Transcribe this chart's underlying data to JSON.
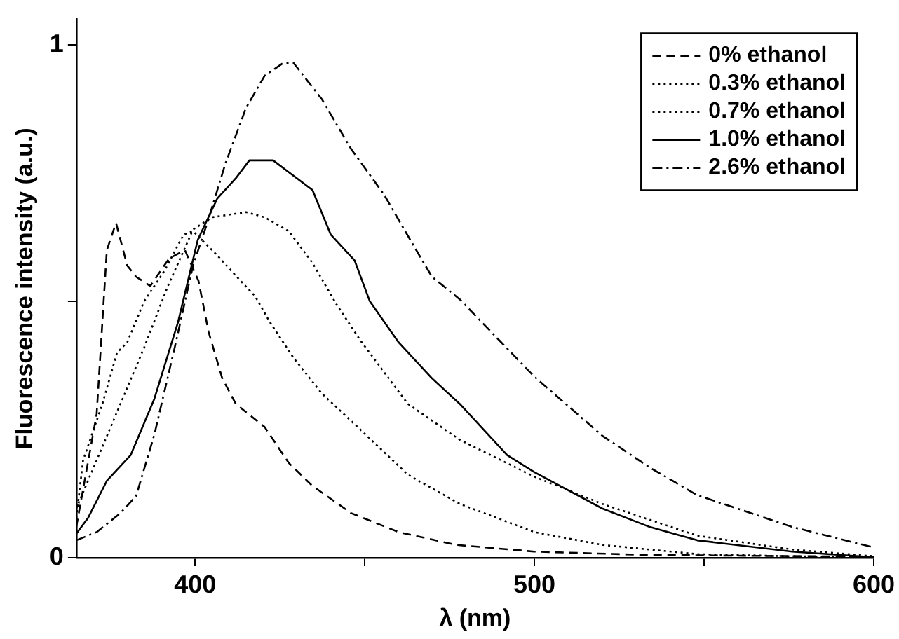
{
  "chart_data": {
    "type": "line",
    "xlabel": "λ (nm)",
    "ylabel": "Fluorescence intensity (a.u.)",
    "xlim": [
      365,
      600
    ],
    "xticks": [
      400,
      {
        "value": 450,
        "label": null
      },
      500,
      {
        "value": 550,
        "label": null
      },
      600
    ],
    "ylim": [
      0,
      1.05
    ],
    "yticks": [
      0,
      {
        "value": 0.5,
        "label": null
      },
      1
    ],
    "grid": false,
    "legend": "top right",
    "marker": "none",
    "series": [
      {
        "name": "0% ethanol",
        "color": "#000000",
        "line_style": "dashed",
        "x": [
          365,
          371,
          374,
          376.7,
          380,
          382.6,
          386.8,
          392.4,
          397,
          401,
          404,
          408,
          412,
          420.5,
          427.6,
          434.6,
          446,
          460,
          477,
          500,
          530,
          560,
          600
        ],
        "values": [
          0.06,
          0.28,
          0.6,
          0.653,
          0.57,
          0.548,
          0.53,
          0.584,
          0.6,
          0.54,
          0.44,
          0.35,
          0.3,
          0.255,
          0.185,
          0.14,
          0.087,
          0.05,
          0.025,
          0.012,
          0.006,
          0.004,
          0.002
        ]
      },
      {
        "name": "0.3% ethanol",
        "color": "#000000",
        "line_style": "dotted",
        "x": [
          365,
          367,
          372.7,
          377,
          380,
          385,
          391,
          396.6,
          399.4,
          406.5,
          412,
          417.7,
          422,
          429,
          437.4,
          448.7,
          462.7,
          478,
          500,
          520,
          548,
          575,
          600
        ],
        "values": [
          0.078,
          0.19,
          0.3,
          0.4,
          0.42,
          0.5,
          0.56,
          0.63,
          0.637,
          0.59,
          0.55,
          0.51,
          0.46,
          0.39,
          0.32,
          0.25,
          0.162,
          0.105,
          0.05,
          0.025,
          0.007,
          0.003,
          0.001
        ]
      },
      {
        "name": "0.7% ethanol",
        "color": "#000000",
        "line_style": "dotted",
        "x": [
          365,
          371,
          378,
          385,
          392,
          399.4,
          405,
          415,
          420.5,
          427.6,
          434.6,
          441.6,
          448.7,
          462.7,
          478,
          500,
          520,
          548,
          576,
          600
        ],
        "values": [
          0.096,
          0.19,
          0.3,
          0.41,
          0.53,
          0.64,
          0.664,
          0.674,
          0.664,
          0.637,
          0.575,
          0.495,
          0.424,
          0.3,
          0.23,
          0.158,
          0.105,
          0.043,
          0.016,
          0.003
        ]
      },
      {
        "name": "1.0% ethanol",
        "color": "#000000",
        "line_style": "solid",
        "x": [
          365,
          368.5,
          374,
          381,
          388,
          395,
          400.8,
          406.5,
          412,
          416,
          423,
          427.6,
          434.6,
          440,
          447,
          451.5,
          460,
          469.8,
          478,
          492,
          500,
          520,
          534,
          548,
          576,
          600
        ],
        "values": [
          0.047,
          0.078,
          0.15,
          0.2,
          0.31,
          0.46,
          0.62,
          0.7,
          0.74,
          0.775,
          0.775,
          0.752,
          0.717,
          0.63,
          0.58,
          0.5,
          0.42,
          0.35,
          0.3,
          0.2,
          0.167,
          0.096,
          0.06,
          0.034,
          0.012,
          0.001
        ]
      },
      {
        "name": "2.6% ethanol",
        "color": "#000000",
        "line_style": "dashdot",
        "x": [
          365,
          371,
          378,
          382.6,
          388,
          394,
          399.4,
          403.7,
          409,
          415,
          420.5,
          426,
          429,
          437.4,
          446,
          455.7,
          462.7,
          469.8,
          478,
          500,
          520,
          534,
          548,
          576,
          600
        ],
        "values": [
          0.034,
          0.05,
          0.087,
          0.12,
          0.24,
          0.41,
          0.57,
          0.655,
          0.77,
          0.877,
          0.94,
          0.965,
          0.965,
          0.894,
          0.797,
          0.708,
          0.628,
          0.548,
          0.504,
          0.353,
          0.238,
          0.176,
          0.122,
          0.06,
          0.02
        ]
      }
    ]
  }
}
